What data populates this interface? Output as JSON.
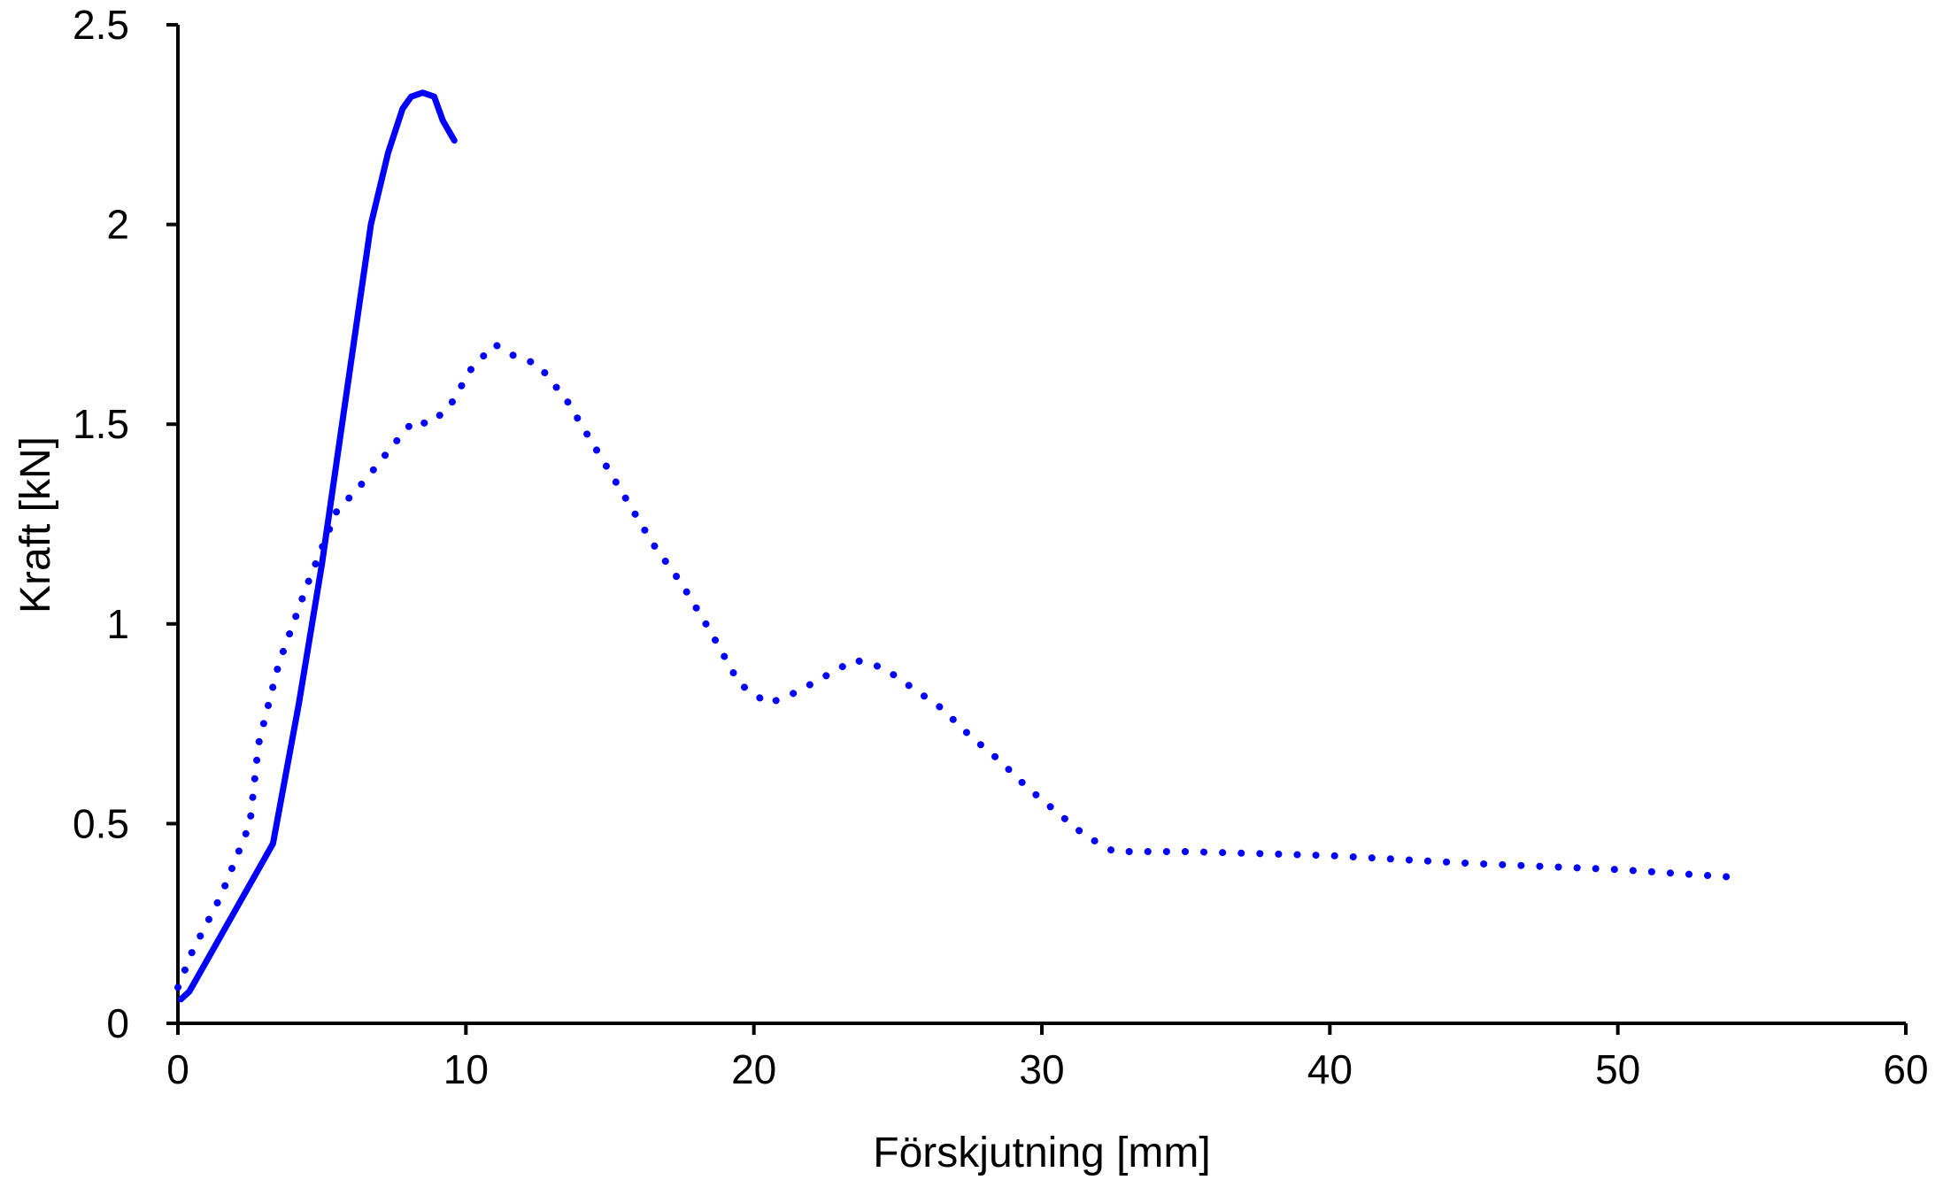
{
  "chart_data": {
    "type": "line",
    "title": "",
    "xlabel": "Förskjutning [mm]",
    "ylabel": "Kraft [kN]",
    "xlim": [
      0,
      60
    ],
    "ylim": [
      0,
      2.5
    ],
    "x_ticks": [
      "0",
      "10",
      "20",
      "30",
      "40",
      "50",
      "60"
    ],
    "y_ticks": [
      "0",
      "0.5",
      "1",
      "1.5",
      "2",
      "2.5"
    ],
    "x_tick_values": [
      0,
      10,
      20,
      30,
      40,
      50,
      60
    ],
    "y_tick_values": [
      0,
      0.5,
      1,
      1.5,
      2,
      2.5
    ],
    "grid": false,
    "legend": "none",
    "colors": {
      "series": "#0000ff",
      "axis": "#000000"
    },
    "series": [
      {
        "style": "solid",
        "color": "#0000ff",
        "points": [
          [
            0.1,
            0.06
          ],
          [
            0.4,
            0.08
          ],
          [
            3.3,
            0.45
          ],
          [
            4.2,
            0.8
          ],
          [
            5.0,
            1.15
          ],
          [
            5.7,
            1.5
          ],
          [
            6.2,
            1.75
          ],
          [
            6.7,
            2.0
          ],
          [
            7.3,
            2.18
          ],
          [
            7.8,
            2.29
          ],
          [
            8.1,
            2.32
          ],
          [
            8.5,
            2.33
          ],
          [
            8.9,
            2.32
          ],
          [
            9.2,
            2.26
          ],
          [
            9.6,
            2.21
          ]
        ]
      },
      {
        "style": "dotted",
        "color": "#0000ff",
        "points": [
          [
            0,
            0.09
          ],
          [
            0.5,
            0.18
          ],
          [
            1.5,
            0.32
          ],
          [
            2.5,
            0.5
          ],
          [
            2.8,
            0.7
          ],
          [
            3.5,
            0.9
          ],
          [
            4.5,
            1.1
          ],
          [
            5.5,
            1.28
          ],
          [
            6.5,
            1.36
          ],
          [
            7.5,
            1.45
          ],
          [
            8.2,
            1.51
          ],
          [
            8.7,
            1.5
          ],
          [
            9.4,
            1.54
          ],
          [
            10.2,
            1.64
          ],
          [
            11.0,
            1.7
          ],
          [
            11.7,
            1.67
          ],
          [
            12.5,
            1.65
          ],
          [
            13.5,
            1.56
          ],
          [
            14.5,
            1.44
          ],
          [
            15.5,
            1.32
          ],
          [
            16.5,
            1.2
          ],
          [
            17.5,
            1.1
          ],
          [
            18.5,
            0.98
          ],
          [
            19.5,
            0.85
          ],
          [
            20.5,
            0.8
          ],
          [
            21.5,
            0.83
          ],
          [
            22.5,
            0.87
          ],
          [
            23.5,
            0.91
          ],
          [
            24.5,
            0.89
          ],
          [
            25.5,
            0.84
          ],
          [
            26.5,
            0.79
          ],
          [
            27.5,
            0.72
          ],
          [
            28.5,
            0.66
          ],
          [
            29.5,
            0.59
          ],
          [
            30.5,
            0.53
          ],
          [
            31.5,
            0.47
          ],
          [
            32.5,
            0.43
          ],
          [
            35,
            0.43
          ],
          [
            40,
            0.42
          ],
          [
            45,
            0.4
          ],
          [
            50,
            0.385
          ],
          [
            54.2,
            0.365
          ]
        ]
      }
    ]
  }
}
